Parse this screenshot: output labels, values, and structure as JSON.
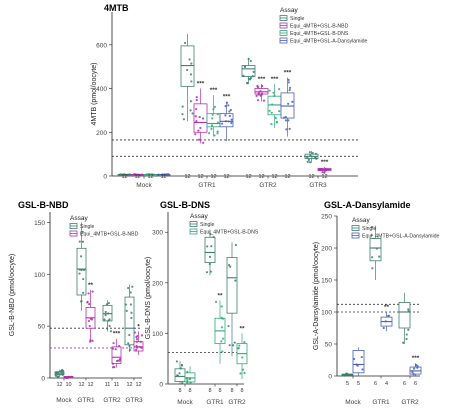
{
  "colors": {
    "Single": "#3c7f6e",
    "Equi_4MTB+GSL-B-NBD": "#b02fb0",
    "Equi_4MTB+GSL-B-DNS": "#2faa76",
    "Equi_4MTB+GSL-A-Dansylamide": "#4a5fb3",
    "axis": "#222222",
    "refline": "#333333"
  },
  "chart_data": [
    {
      "id": "p4mtb",
      "type": "box",
      "title": "4MTB",
      "ylabel": "4MTB (pmol/oocyte)",
      "ylim": [
        0,
        750
      ],
      "yticks": [
        "0",
        "200",
        "400",
        "600"
      ],
      "ytick_values": [
        0,
        200,
        400,
        600
      ],
      "legend_title": "Assay",
      "legend": [
        "Single",
        "Equi_4MTB+GSL-B-NBD",
        "Equi_4MTB+GSL-B-DNS",
        "Equi_4MTB+GSL-A-Dansylamide"
      ],
      "groups": [
        "Mock",
        "GTR1",
        "GTR2",
        "GTR3"
      ],
      "refline_values": [
        90,
        165
      ],
      "boxes": [
        {
          "group": 0,
          "series": "Single",
          "q": [
            5,
            6,
            6,
            7,
            8
          ],
          "n": "12",
          "sig": ""
        },
        {
          "group": 0,
          "series": "Equi_4MTB+GSL-B-NBD",
          "q": [
            5,
            6,
            6,
            7,
            8
          ],
          "n": "12",
          "sig": ""
        },
        {
          "group": 0,
          "series": "Equi_4MTB+GSL-B-DNS",
          "q": [
            5,
            6,
            6,
            7,
            8
          ],
          "n": "12",
          "sig": ""
        },
        {
          "group": 0,
          "series": "Equi_4MTB+GSL-A-Dansylamide",
          "q": [
            5,
            6,
            6,
            7,
            8
          ],
          "n": "11",
          "sig": ""
        },
        {
          "group": 1,
          "series": "Single",
          "q": [
            250,
            410,
            505,
            595,
            650
          ],
          "n": "12",
          "sig": ""
        },
        {
          "group": 1,
          "series": "Equi_4MTB+GSL-B-NBD",
          "q": [
            150,
            200,
            245,
            330,
            400
          ],
          "n": "12",
          "sig": "***"
        },
        {
          "group": 1,
          "series": "Equi_4MTB+GSL-B-DNS",
          "q": [
            180,
            225,
            240,
            285,
            370
          ],
          "n": "12",
          "sig": "***"
        },
        {
          "group": 1,
          "series": "Equi_4MTB+GSL-A-Dansylamide",
          "q": [
            160,
            225,
            250,
            285,
            340
          ],
          "n": "12",
          "sig": "***"
        },
        {
          "group": 2,
          "series": "Single",
          "q": [
            420,
            455,
            490,
            505,
            540
          ],
          "n": "12",
          "sig": ""
        },
        {
          "group": 2,
          "series": "Equi_4MTB+GSL-B-NBD",
          "q": [
            340,
            375,
            385,
            400,
            420
          ],
          "n": "12",
          "sig": "***"
        },
        {
          "group": 2,
          "series": "Equi_4MTB+GSL-B-DNS",
          "q": [
            220,
            280,
            325,
            365,
            420
          ],
          "n": "12",
          "sig": "***"
        },
        {
          "group": 2,
          "series": "Equi_4MTB+GSL-A-Dansylamide",
          "q": [
            180,
            265,
            320,
            380,
            450
          ],
          "n": "12",
          "sig": "***"
        },
        {
          "group": 3,
          "series": "Single",
          "q": [
            60,
            80,
            90,
            100,
            115
          ],
          "n": "12",
          "sig": ""
        },
        {
          "group": 3,
          "series": "Equi_4MTB+GSL-B-NBD",
          "q": [
            15,
            25,
            30,
            35,
            42
          ],
          "n": "12",
          "sig": "***"
        }
      ]
    },
    {
      "id": "pnbd",
      "type": "box",
      "title": "GSL-B-NBD",
      "ylabel": "GSL-B-NBD (pmol/oocyte)",
      "ylim": [
        0,
        160
      ],
      "yticks": [
        "0",
        "50",
        "100",
        "150"
      ],
      "ytick_values": [
        0,
        50,
        100,
        150
      ],
      "legend_title": "Assay",
      "legend": [
        "Single",
        "Equi_4MTB+GSL-B-NBD"
      ],
      "groups": [
        "Mock",
        "GTR1",
        "GTR2",
        "GTR3"
      ],
      "refline_values": [
        48
      ],
      "refline2_values": [
        29
      ],
      "boxes": [
        {
          "group": 0,
          "series": "Single",
          "q": [
            1,
            3,
            4,
            6,
            8
          ],
          "n": "12",
          "sig": ""
        },
        {
          "group": 0,
          "series": "Equi_4MTB+GSL-B-NBD",
          "q": [
            0,
            0.5,
            1,
            1.5,
            2
          ],
          "n": "10",
          "sig": ""
        },
        {
          "group": 1,
          "series": "Single",
          "q": [
            65,
            80,
            105,
            125,
            150
          ],
          "n": "12",
          "sig": ""
        },
        {
          "group": 1,
          "series": "Equi_4MTB+GSL-B-NBD",
          "q": [
            35,
            48,
            58,
            68,
            85
          ],
          "n": "12",
          "sig": "**"
        },
        {
          "group": 2,
          "series": "Single",
          "q": [
            45,
            55,
            62,
            70,
            75
          ],
          "n": "11",
          "sig": ""
        },
        {
          "group": 2,
          "series": "Equi_4MTB+GSL-B-NBD",
          "q": [
            10,
            14,
            20,
            30,
            38
          ],
          "n": "11",
          "sig": "***"
        },
        {
          "group": 3,
          "series": "Single",
          "q": [
            25,
            32,
            48,
            78,
            90
          ],
          "n": "12",
          "sig": ""
        },
        {
          "group": 3,
          "series": "Equi_4MTB+GSL-B-NBD",
          "q": [
            22,
            26,
            30,
            35,
            45
          ],
          "n": "12",
          "sig": "*"
        }
      ]
    },
    {
      "id": "pdns",
      "type": "box",
      "title": "GSL-B-DNS",
      "ylabel": "GSL-B-DNS (pmol/oocyte)",
      "ylim": [
        0,
        340
      ],
      "yticks": [
        "0",
        "100",
        "200",
        "300"
      ],
      "ytick_values": [
        0,
        100,
        200,
        300
      ],
      "legend_title": "Assay",
      "legend": [
        "Single",
        "Equi_4MTB+GSL-B-DNS"
      ],
      "groups": [
        "Mock",
        "GTR1",
        "GTR2"
      ],
      "refline_values": [
        62
      ],
      "boxes": [
        {
          "group": 0,
          "series": "Single",
          "q": [
            0,
            5,
            15,
            30,
            45
          ],
          "n": "8",
          "sig": ""
        },
        {
          "group": 0,
          "series": "Equi_4MTB+GSL-B-DNS",
          "q": [
            0,
            4,
            12,
            22,
            35
          ],
          "n": "8",
          "sig": ""
        },
        {
          "group": 1,
          "series": "Single",
          "q": [
            215,
            240,
            260,
            290,
            305
          ],
          "n": "8",
          "sig": ""
        },
        {
          "group": 1,
          "series": "Equi_4MTB+GSL-B-DNS",
          "q": [
            40,
            80,
            105,
            130,
            165
          ],
          "n": "8",
          "sig": "**"
        },
        {
          "group": 2,
          "series": "Single",
          "q": [
            55,
            140,
            210,
            250,
            280
          ],
          "n": "8",
          "sig": ""
        },
        {
          "group": 2,
          "series": "Equi_4MTB+GSL-B-DNS",
          "q": [
            10,
            40,
            60,
            80,
            100
          ],
          "n": "8",
          "sig": "**"
        }
      ]
    },
    {
      "id": "pdan",
      "type": "box",
      "title": "GSL-A-Dansylamide",
      "ylabel": "GSL-A-Dansylamide (pmol/oocyte)",
      "ylim": [
        0,
        250
      ],
      "yticks": [
        "0",
        "50",
        "100",
        "150",
        "200",
        "250"
      ],
      "ytick_values": [
        0,
        50,
        100,
        150,
        200,
        250
      ],
      "legend_title": "Assay",
      "legend": [
        "Single",
        "Equi_4MTB+GSL-A-Dansylamide"
      ],
      "groups": [
        "Mock",
        "GTR1",
        "GTR2"
      ],
      "refline_values": [
        112,
        100
      ],
      "boxes": [
        {
          "group": 0,
          "series": "Single",
          "q": [
            0,
            1,
            2,
            3,
            5
          ],
          "n": "5",
          "sig": ""
        },
        {
          "group": 0,
          "series": "Equi_4MTB+GSL-A-Dansylamide",
          "q": [
            0,
            5,
            18,
            40,
            45
          ],
          "n": "5",
          "sig": ""
        },
        {
          "group": 1,
          "series": "Single",
          "q": [
            150,
            180,
            200,
            215,
            235
          ],
          "n": "6",
          "sig": ""
        },
        {
          "group": 1,
          "series": "Equi_4MTB+GSL-A-Dansylamide",
          "q": [
            70,
            78,
            85,
            92,
            100
          ],
          "n": "4",
          "sig": "**"
        },
        {
          "group": 2,
          "series": "Single",
          "q": [
            50,
            75,
            100,
            115,
            130
          ],
          "n": "6",
          "sig": ""
        },
        {
          "group": 2,
          "series": "Equi_4MTB+GSL-A-Dansylamide",
          "q": [
            0,
            3,
            8,
            14,
            20
          ],
          "n": "6",
          "sig": "***"
        }
      ]
    }
  ]
}
